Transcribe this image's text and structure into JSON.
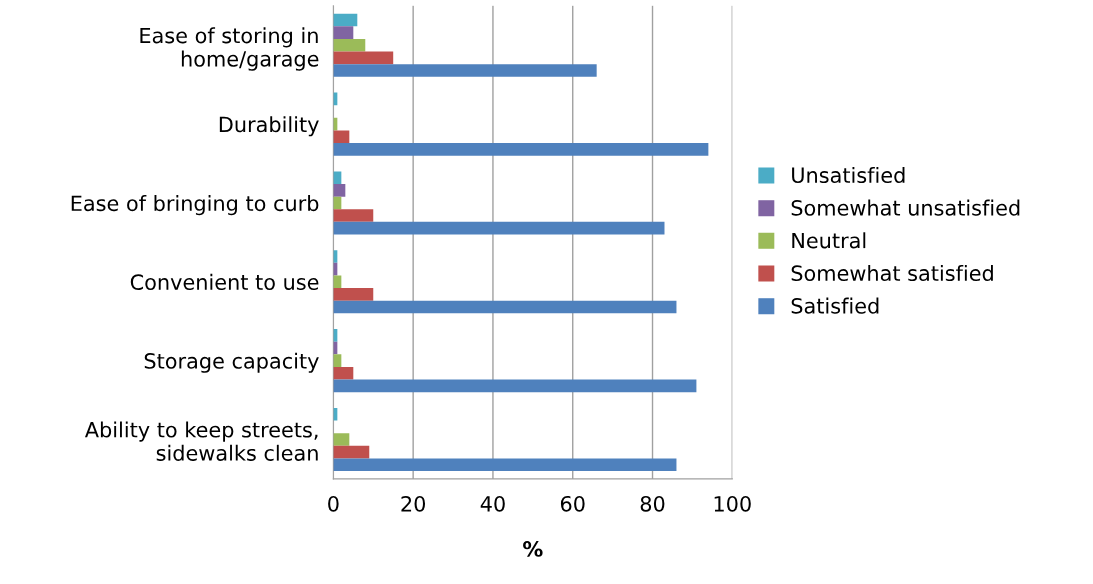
{
  "chart_data": {
    "type": "bar",
    "orientation": "horizontal",
    "xlabel": "%",
    "categories": [
      "Ease of storing in\nhome/garage",
      "Durability",
      "Ease of bringing to curb",
      "Convenient to use",
      "Storage capacity",
      "Ability to keep streets,\nsidewalks clean"
    ],
    "series": [
      {
        "name": "Unsatisfied",
        "color": "#4bacc6",
        "values": [
          6,
          1,
          2,
          1,
          1,
          1
        ]
      },
      {
        "name": "Somewhat unsatisfied",
        "color": "#8064a2",
        "values": [
          5,
          0,
          3,
          1,
          1,
          0
        ]
      },
      {
        "name": "Neutral",
        "color": "#9bbb59",
        "values": [
          8,
          1,
          2,
          2,
          2,
          4
        ]
      },
      {
        "name": "Somewhat satisfied",
        "color": "#c0504d",
        "values": [
          15,
          4,
          10,
          10,
          5,
          9
        ]
      },
      {
        "name": "Satisfied",
        "color": "#4f81bd",
        "values": [
          66,
          94,
          83,
          86,
          91,
          86
        ]
      }
    ],
    "xlim": [
      0,
      100
    ],
    "xticks": [
      0,
      20,
      40,
      60,
      80,
      100
    ],
    "grid": "x",
    "legend": "right"
  }
}
